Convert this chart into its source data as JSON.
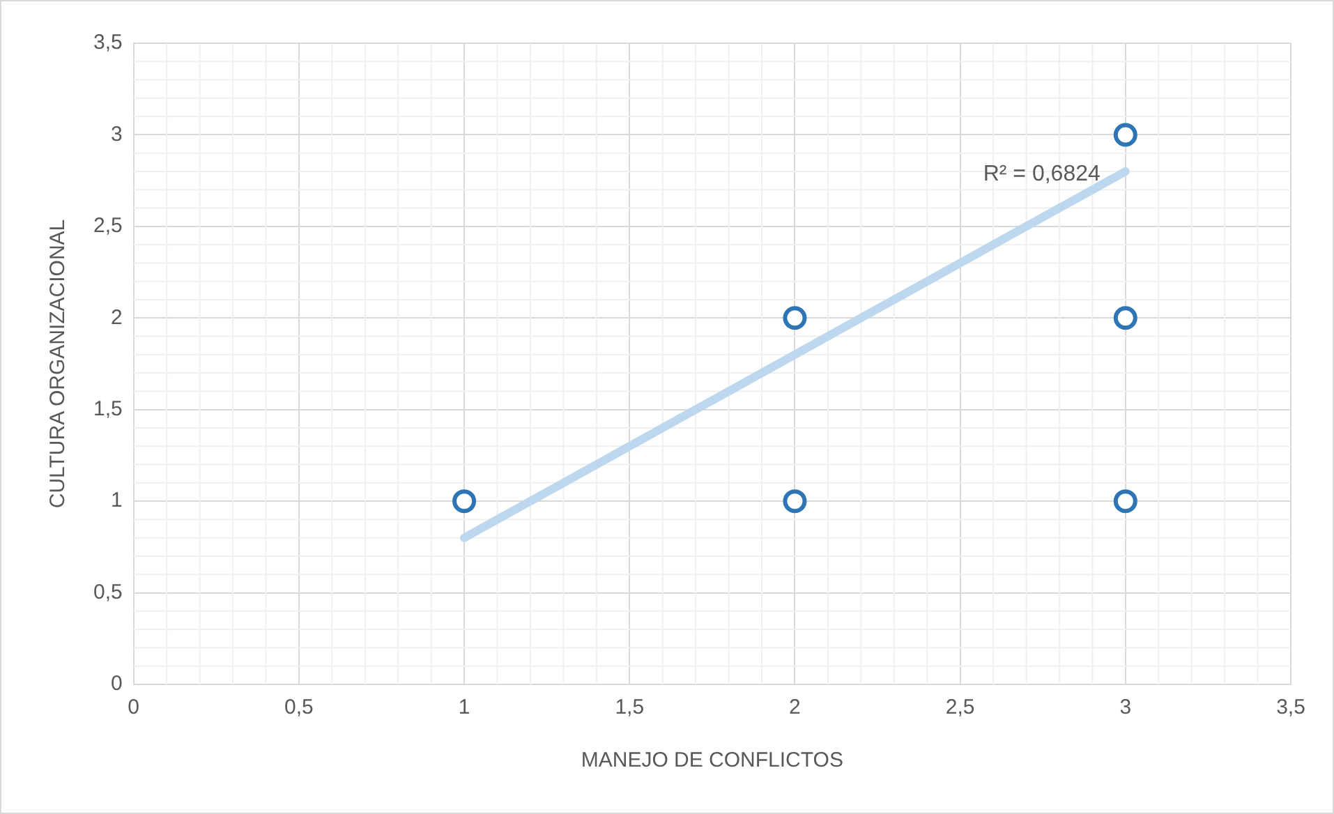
{
  "chart_data": {
    "type": "scatter",
    "xlabel": "MANEJO DE CONFLICTOS",
    "ylabel": "CULTURA ORGANIZACIONAL",
    "xlim": [
      0,
      3.5
    ],
    "ylim": [
      0,
      3.5
    ],
    "xticks": [
      0,
      {
        "value": 0.5,
        "label": "0,5"
      },
      1,
      {
        "value": 1.5,
        "label": "1,5"
      },
      2,
      {
        "value": 2.5,
        "label": "2,5"
      },
      3,
      {
        "value": 3.5,
        "label": "3,5"
      }
    ],
    "yticks": [
      0,
      {
        "value": 0.5,
        "label": "0,5"
      },
      1,
      {
        "value": 1.5,
        "label": "1,5"
      },
      2,
      {
        "value": 2.5,
        "label": "2,5"
      },
      3,
      {
        "value": 3.5,
        "label": "3,5"
      }
    ],
    "series": [
      {
        "color": "#2e75b6",
        "x": [
          1,
          2,
          2,
          3,
          3,
          3
        ],
        "values": [
          1,
          1,
          2,
          1,
          2,
          3
        ],
        "marker": "circle"
      },
      {
        "type": "line",
        "color": "#bdd7ee",
        "x": [
          1,
          3
        ],
        "values": [
          0.8,
          2.8
        ],
        "marker": "none"
      }
    ],
    "annotations": [
      "R² = 0,6824"
    ],
    "grid": true,
    "legend": false
  }
}
